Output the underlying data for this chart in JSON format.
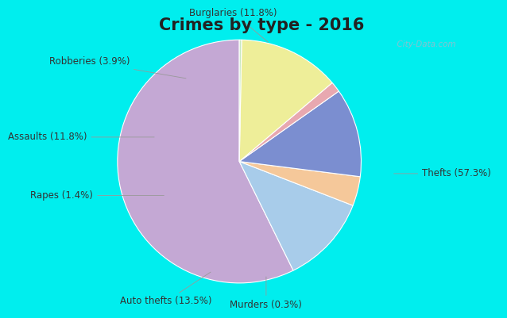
{
  "title": "Crimes by type - 2016",
  "title_fontsize": 15,
  "title_fontweight": "bold",
  "slices": [
    {
      "label": "Thefts (57.3%)",
      "value": 57.3,
      "color": "#C4A8D4"
    },
    {
      "label": "Burglaries (11.8%)",
      "value": 11.8,
      "color": "#A8CCEA"
    },
    {
      "label": "Robberies (3.9%)",
      "value": 3.9,
      "color": "#F5C89A"
    },
    {
      "label": "Assaults (11.8%)",
      "value": 11.8,
      "color": "#7B8ED0"
    },
    {
      "label": "Rapes (1.4%)",
      "value": 1.4,
      "color": "#E8A8B0"
    },
    {
      "label": "Auto thefts (13.5%)",
      "value": 13.5,
      "color": "#EEEE99"
    },
    {
      "label": "Murders (0.3%)",
      "value": 0.3,
      "color": "#C8E8C0"
    }
  ],
  "bg_cyan": "#00EEEE",
  "bg_inner": "#C8E8D0",
  "watermark": "  City-Data.com",
  "startangle": 90,
  "label_fontsize": 8.5,
  "label_color": "#333333"
}
